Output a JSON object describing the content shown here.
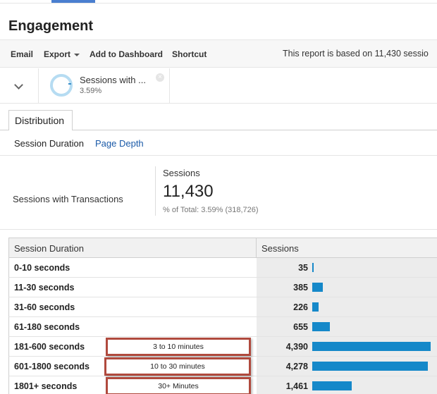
{
  "page": {
    "title": "Engagement"
  },
  "toolbar": {
    "email_label": "Email",
    "export_label": "Export",
    "add_to_dashboard_label": "Add to Dashboard",
    "shortcut_label": "Shortcut",
    "report_info": "This report is based on 11,430 sessio"
  },
  "segment": {
    "name": "Sessions with ...",
    "percent": "3.59%",
    "ring_fraction": 0.0359
  },
  "tabs": [
    {
      "label": "Distribution",
      "active": true
    }
  ],
  "subnav": {
    "active": "Session Duration",
    "link": "Page Depth"
  },
  "summary": {
    "segment_label": "Sessions with Transactions",
    "metric_label": "Sessions",
    "metric_value": "11,430",
    "percent_of_total": "% of Total: 3.59% (318,726)"
  },
  "table": {
    "headers": [
      "Session Duration",
      "Sessions"
    ],
    "rows": [
      {
        "label": "0-10 seconds",
        "sessions": "35",
        "value": 35
      },
      {
        "label": "11-30 seconds",
        "sessions": "385",
        "value": 385
      },
      {
        "label": "31-60 seconds",
        "sessions": "226",
        "value": 226
      },
      {
        "label": "61-180 seconds",
        "sessions": "655",
        "value": 655
      },
      {
        "label": "181-600 seconds",
        "sessions": "4,390",
        "value": 4390
      },
      {
        "label": "601-1800 seconds",
        "sessions": "4,278",
        "value": 4278
      },
      {
        "label": "1801+ seconds",
        "sessions": "1,461",
        "value": 1461
      }
    ]
  },
  "annotations": [
    {
      "row": 4,
      "text": "3 to 10 minutes"
    },
    {
      "row": 5,
      "text": "10 to 30 minutes"
    },
    {
      "row": 6,
      "text": "30+ Minutes"
    }
  ],
  "colors": {
    "accent": "#4a7fd0",
    "bar": "#1588c9",
    "callout_border": "#b04a3e",
    "link": "#1a5aa8"
  }
}
